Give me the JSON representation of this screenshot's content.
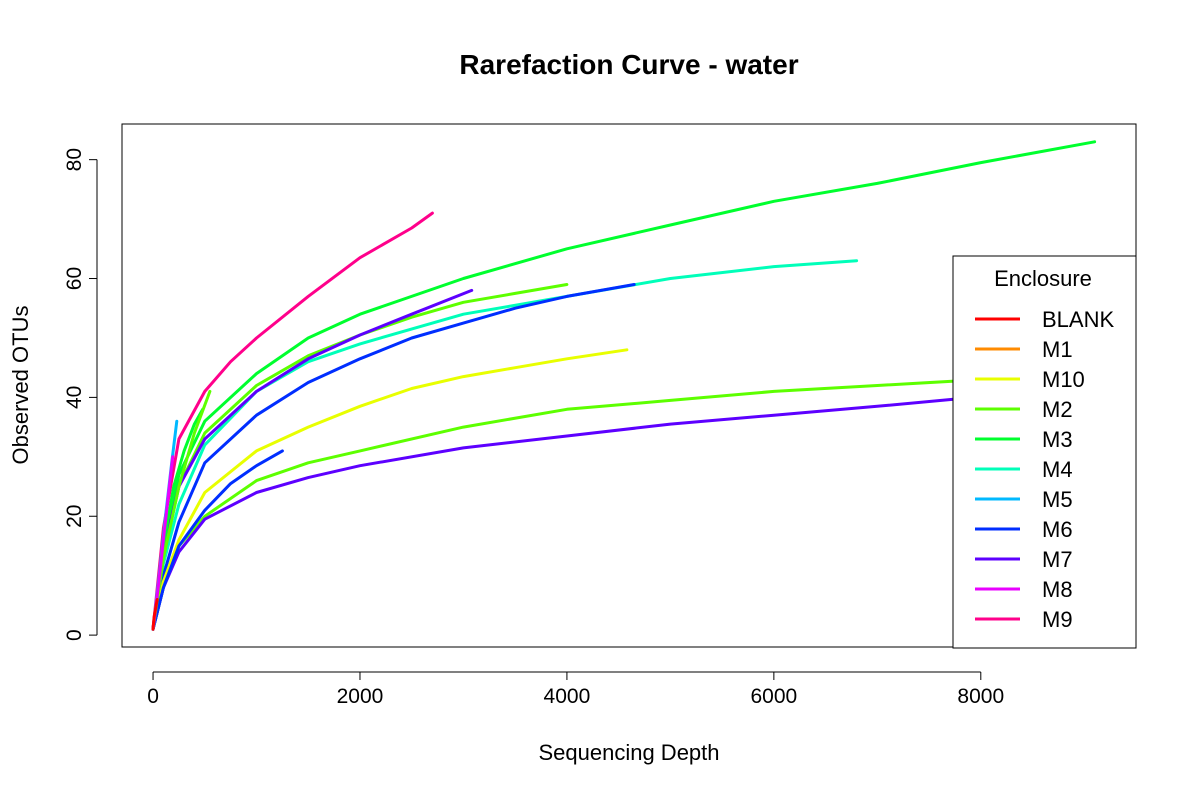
{
  "chart_data": {
    "type": "line",
    "title": "Rarefaction Curve - water",
    "xlabel": "Sequencing Depth",
    "ylabel": "Observed OTUs",
    "xlim": [
      -300,
      9500
    ],
    "ylim": [
      -2,
      86
    ],
    "x_ticks": [
      0,
      2000,
      4000,
      6000,
      8000
    ],
    "y_ticks": [
      0,
      20,
      40,
      60,
      80
    ],
    "grid": false,
    "legend": {
      "title": "Enclosure",
      "placement": "right",
      "entries": [
        {
          "label": "BLANK",
          "color": "#FF0000"
        },
        {
          "label": "M1",
          "color": "#FF8B00"
        },
        {
          "label": "M10",
          "color": "#E8FF00"
        },
        {
          "label": "M2",
          "color": "#5DFF00"
        },
        {
          "label": "M3",
          "color": "#00FF2E"
        },
        {
          "label": "M4",
          "color": "#00FFB9"
        },
        {
          "label": "M5",
          "color": "#00B9FF"
        },
        {
          "label": "M6",
          "color": "#002EFF"
        },
        {
          "label": "M7",
          "color": "#5D00FF"
        },
        {
          "label": "M8",
          "color": "#E800FF"
        },
        {
          "label": "M9",
          "color": "#FF008B"
        }
      ]
    },
    "series": [
      {
        "name": "M3",
        "color": "#00FF2E",
        "x": [
          0,
          100,
          250,
          500,
          1000,
          1500,
          2000,
          3000,
          4000,
          5000,
          6000,
          7000,
          8000,
          9100
        ],
        "y": [
          1,
          14,
          27,
          36,
          44,
          50,
          54,
          60,
          65,
          69,
          73,
          76,
          79.5,
          83
        ]
      },
      {
        "name": "M2",
        "color": "#5DFF00",
        "x": [
          0,
          100,
          250,
          500,
          1000,
          1500,
          2000,
          3000,
          4000,
          5000,
          6000,
          7000,
          8000,
          8600
        ],
        "y": [
          1,
          8,
          15,
          20,
          26,
          29,
          31,
          35,
          38,
          39.5,
          41,
          42,
          43,
          43.5
        ]
      },
      {
        "name": "M7",
        "color": "#5D00FF",
        "x": [
          0,
          100,
          250,
          500,
          1000,
          1500,
          2000,
          3000,
          4000,
          5000,
          6000,
          7000,
          7800
        ],
        "y": [
          1,
          8,
          14,
          19.5,
          24,
          26.5,
          28.5,
          31.5,
          33.5,
          35.5,
          37,
          38.5,
          39.8
        ]
      },
      {
        "name": "M4",
        "color": "#00FFB9",
        "x": [
          0,
          100,
          250,
          500,
          1000,
          1500,
          2000,
          3000,
          4000,
          5000,
          6000,
          6800
        ],
        "y": [
          1,
          12,
          22,
          32,
          41,
          46,
          49,
          54,
          57,
          60,
          62,
          63
        ]
      },
      {
        "name": "M6",
        "color": "#002EFF",
        "x": [
          0,
          100,
          250,
          500,
          1000,
          1500,
          2000,
          2500,
          3000,
          3500,
          4000,
          4650
        ],
        "y": [
          1,
          10,
          19,
          29,
          37,
          42.5,
          46.5,
          50,
          52.5,
          55,
          57,
          59
        ]
      },
      {
        "name": "M10",
        "color": "#E8FF00",
        "x": [
          0,
          100,
          250,
          500,
          1000,
          1500,
          2000,
          2500,
          3000,
          3500,
          4000,
          4580
        ],
        "y": [
          1,
          9,
          16,
          24,
          31,
          35,
          38.5,
          41.5,
          43.5,
          45,
          46.5,
          48
        ]
      },
      {
        "name": "M2",
        "color": "#5DFF00",
        "x": [
          0,
          100,
          250,
          500,
          1000,
          1500,
          2000,
          2500,
          3000,
          3500,
          4000
        ],
        "y": [
          1,
          13,
          25,
          34,
          42,
          47,
          50.5,
          53.5,
          56,
          57.5,
          59
        ]
      },
      {
        "name": "M7",
        "color": "#5D00FF",
        "x": [
          0,
          100,
          250,
          500,
          1000,
          1500,
          2000,
          2500,
          3080
        ],
        "y": [
          1,
          14,
          25,
          33,
          41,
          46.5,
          50.5,
          54,
          58
        ]
      },
      {
        "name": "M9",
        "color": "#FF008B",
        "x": [
          0,
          100,
          250,
          500,
          750,
          1000,
          1500,
          2000,
          2500,
          2700
        ],
        "y": [
          1,
          18,
          33,
          41,
          46,
          50,
          57,
          63.5,
          68.5,
          71
        ]
      },
      {
        "name": "M6",
        "color": "#002EFF",
        "x": [
          0,
          100,
          250,
          500,
          750,
          1000,
          1250
        ],
        "y": [
          1,
          8,
          15,
          21,
          25.5,
          28.5,
          31
        ]
      },
      {
        "name": "M3",
        "color": "#00FF2E",
        "x": [
          0,
          100,
          200,
          300,
          400,
          480
        ],
        "y": [
          1,
          15,
          25,
          31,
          35.5,
          38
        ]
      },
      {
        "name": "M2",
        "color": "#5DFF00",
        "x": [
          0,
          100,
          250,
          400,
          550
        ],
        "y": [
          1,
          13,
          25,
          34,
          41
        ]
      },
      {
        "name": "M5",
        "color": "#00B9FF",
        "x": [
          0,
          60,
          120,
          180,
          230
        ],
        "y": [
          1,
          10,
          20,
          29,
          36
        ]
      },
      {
        "name": "M8",
        "color": "#E800FF",
        "x": [
          0,
          50,
          100,
          150,
          190
        ],
        "y": [
          1,
          8,
          16,
          24,
          30
        ]
      },
      {
        "name": "BLANK",
        "color": "#FF0000",
        "x": [
          0,
          10,
          20,
          40
        ],
        "y": [
          1,
          3,
          4,
          6
        ]
      }
    ]
  }
}
